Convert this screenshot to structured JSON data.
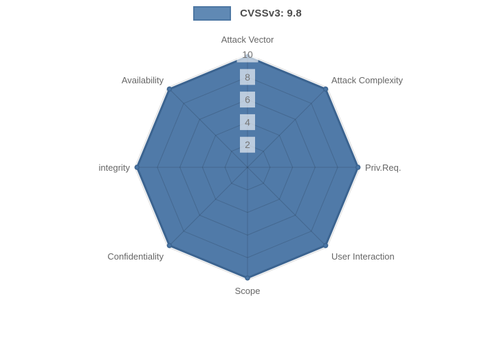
{
  "legend": {
    "position": "top",
    "items": [
      {
        "label": "CVSSv3: 9.8",
        "swatch_fill": "#6089b4",
        "swatch_border": "#4d77a3"
      }
    ]
  },
  "colors": {
    "background": "#ffffff",
    "series_fill": "#4a76a5",
    "series_border": "#3c6490",
    "grid_line": "rgba(0,0,0,0.15)",
    "tick_text": "#757575",
    "tick_backdrop": "rgba(255,255,255,0.62)",
    "axis_label_text": "#666666"
  },
  "chart_data": {
    "type": "radar",
    "title": "",
    "categories": [
      "Attack Vector",
      "Attack Complexity",
      "Priv.Req.",
      "User Interaction",
      "Scope",
      "Confidentiality",
      "integrity",
      "Availability"
    ],
    "series": [
      {
        "name": "CVSSv3: 9.8",
        "values": [
          9.8,
          9.8,
          9.8,
          9.8,
          9.8,
          9.8,
          9.8,
          9.8
        ]
      }
    ],
    "radial_ticks": [
      2,
      4,
      6,
      8,
      10
    ],
    "rmin": 0,
    "rmax": 10,
    "grid_shape": "polygon",
    "grid_on": true,
    "legend_position": "top"
  }
}
